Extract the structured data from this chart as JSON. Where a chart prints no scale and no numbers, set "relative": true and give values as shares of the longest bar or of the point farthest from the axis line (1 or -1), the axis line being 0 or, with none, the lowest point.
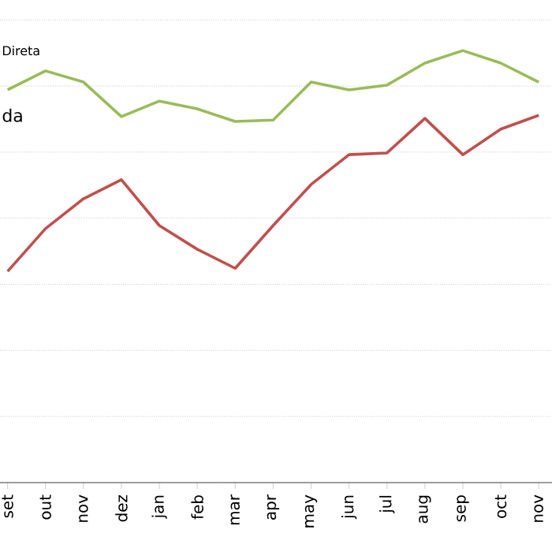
{
  "chart_data": {
    "type": "line",
    "relative": true,
    "grid": "y",
    "marker": "none",
    "line_style": "solid",
    "categories": [
      "set",
      "out",
      "nov",
      "dez",
      "jan",
      "feb",
      "mar",
      "apr",
      "may",
      "jun",
      "jul",
      "aug",
      "sep",
      "oct",
      "nov"
    ],
    "series": [
      {
        "color": "#9bbb59",
        "values": [
          0.909,
          0.953,
          0.927,
          0.847,
          0.883,
          0.865,
          0.836,
          0.839,
          0.927,
          0.909,
          0.92,
          0.971,
          1,
          0.971,
          0.927
        ]
      },
      {
        "color": "#c0504d",
        "values": [
          0.489,
          0.588,
          0.657,
          0.701,
          0.595,
          0.54,
          0.496,
          0.595,
          0.69,
          0.759,
          0.763,
          0.843,
          0.759,
          0.818,
          0.85
        ]
      }
    ],
    "annotations": [
      "Direta",
      "da"
    ]
  }
}
